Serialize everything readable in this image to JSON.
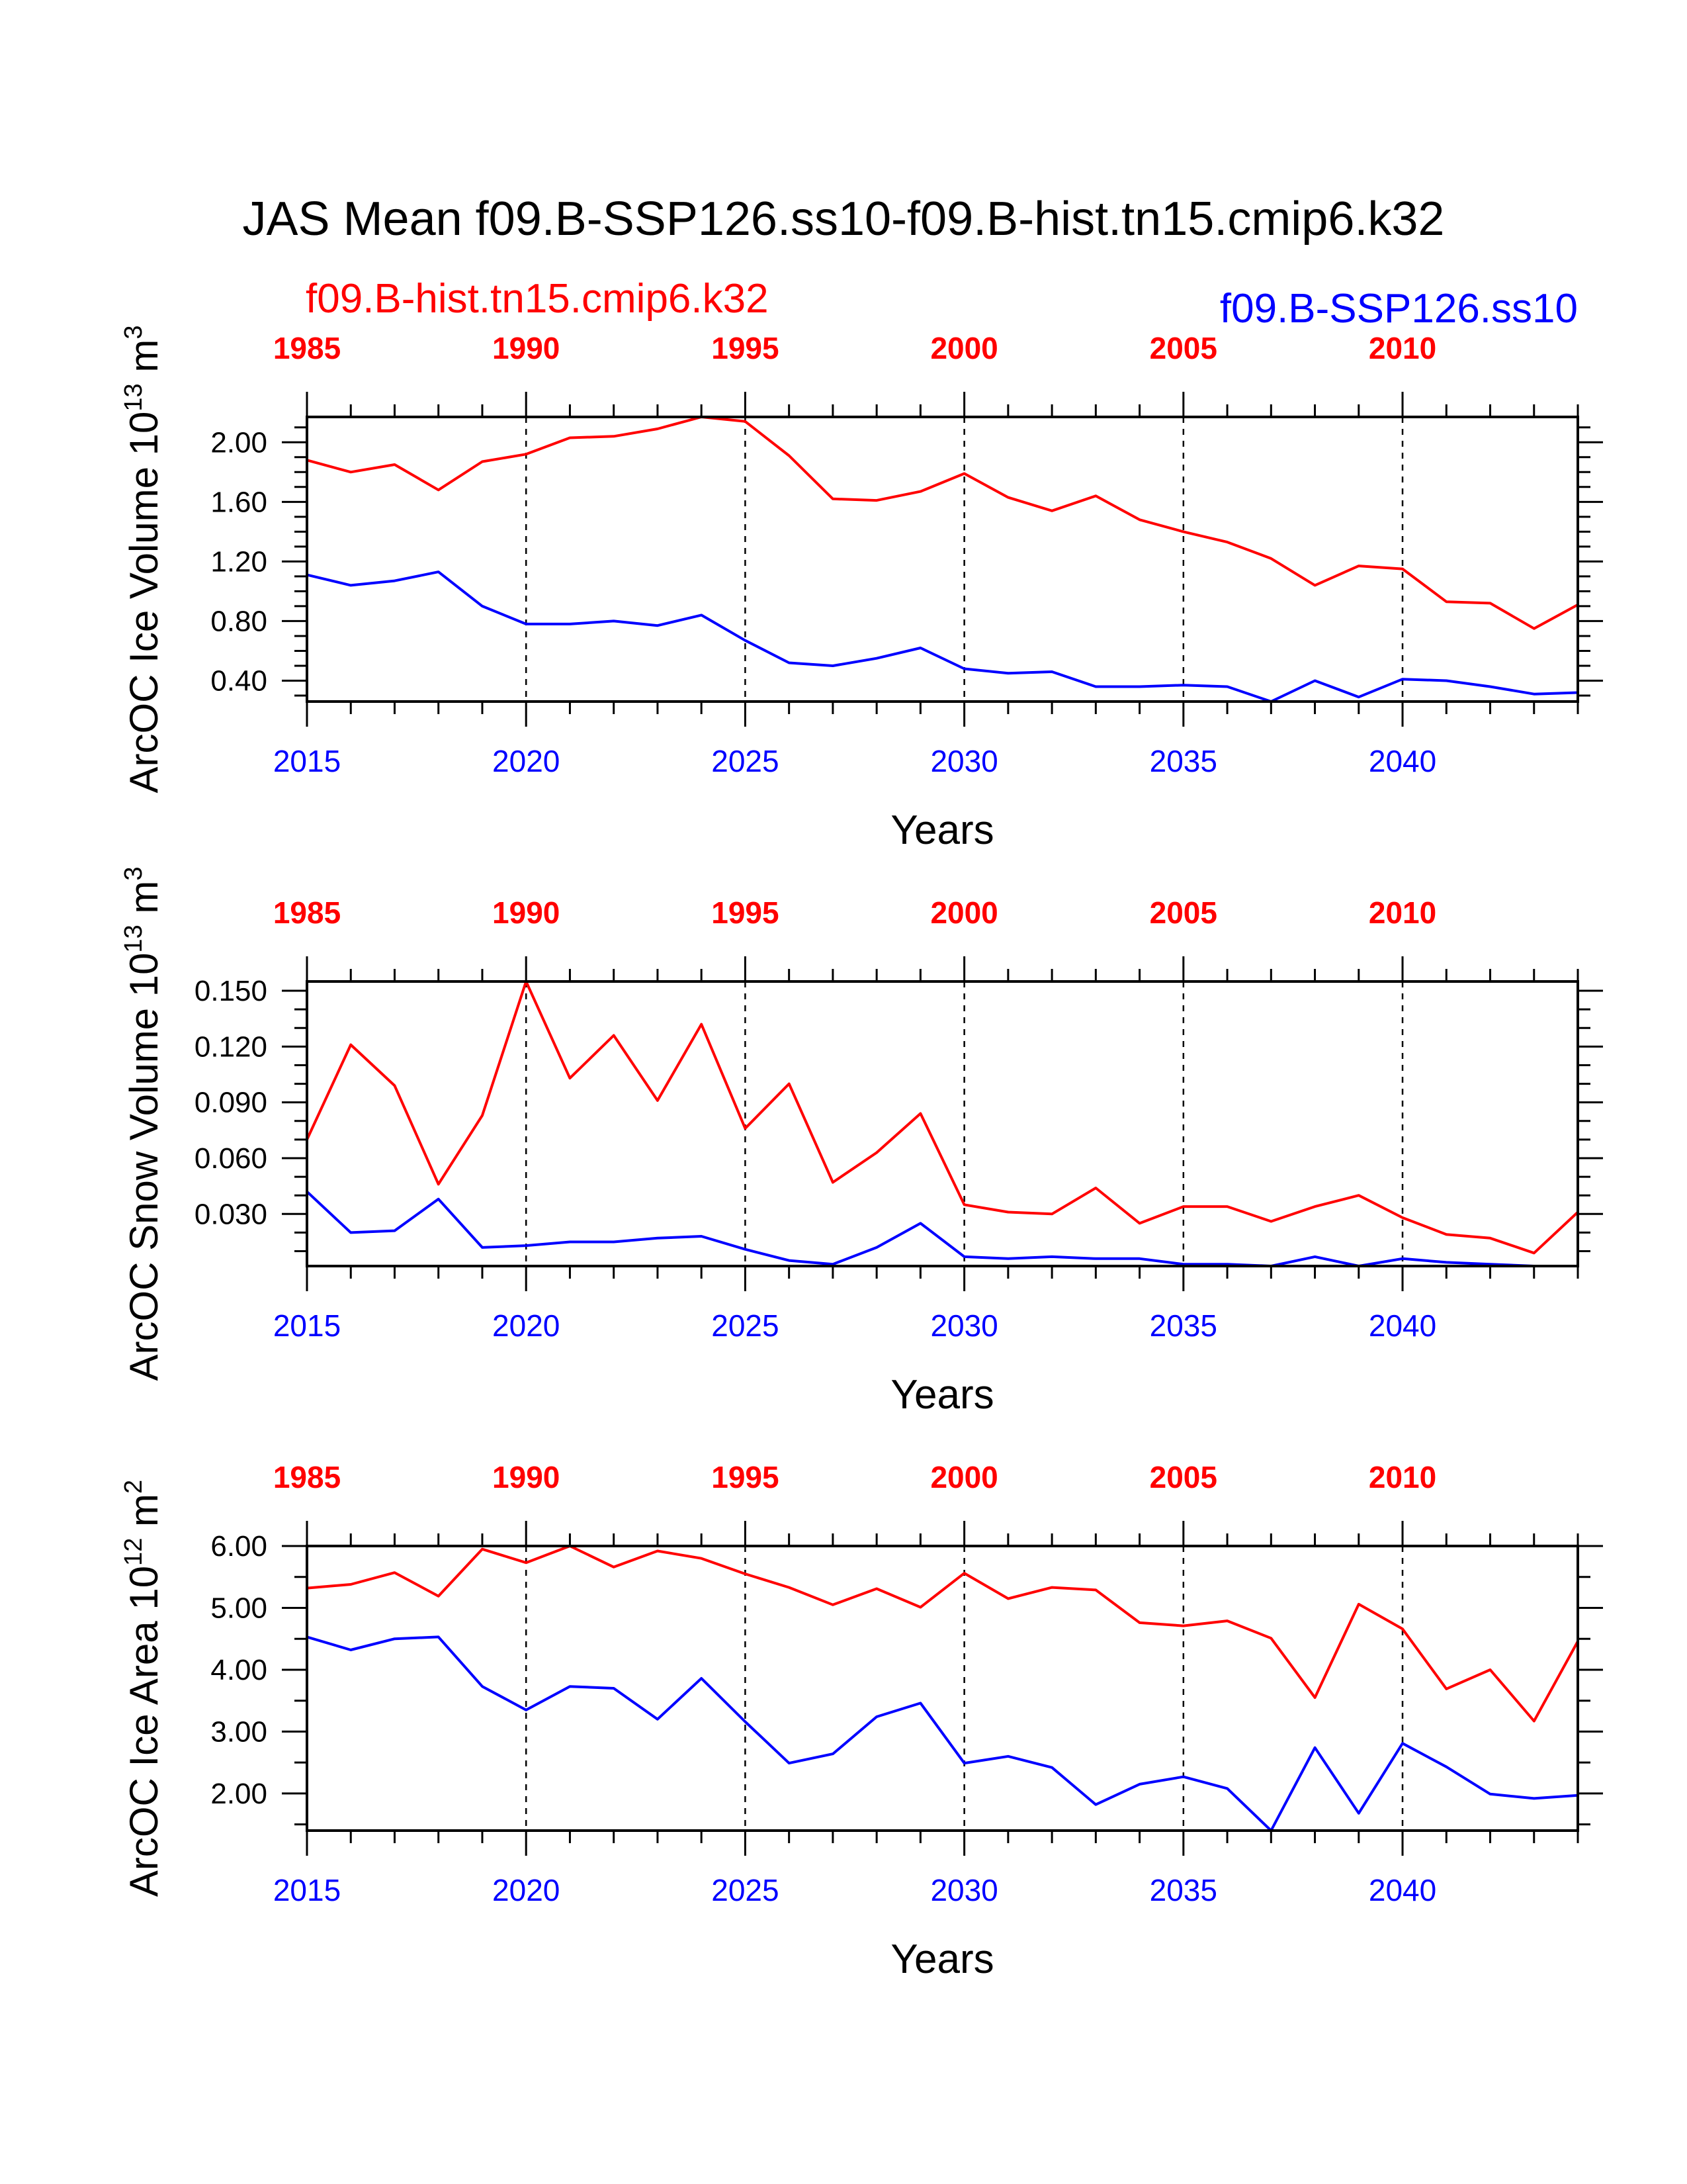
{
  "title": "JAS Mean f09.B-SSP126.ss10-f09.B-hist.tn15.cmip6.k32",
  "legend": {
    "hist_label": "f09.B-hist.tn15.cmip6.k32",
    "ssp_label": "f09.B-SSP126.ss10"
  },
  "colors": {
    "hist": "#ff0000",
    "ssp": "#0000ff",
    "axis": "#000000"
  },
  "chart_data": [
    {
      "type": "line",
      "ylabel": "ArcOC Ice Volume 10",
      "ylabel_exp": "13",
      "ylabel_unit": " m",
      "ylabel_unit_exp": "3",
      "xlabel": "Years",
      "ylim": [
        0.26,
        2.17
      ],
      "yticks": [
        0.4,
        0.8,
        1.2,
        1.6,
        2.0
      ],
      "ytick_labels": [
        "0.40",
        "0.80",
        "1.20",
        "1.60",
        "2.00"
      ],
      "yminor": [
        0.3,
        0.5,
        0.6,
        0.7,
        0.9,
        1.0,
        1.1,
        1.3,
        1.4,
        1.5,
        1.7,
        1.8,
        1.9,
        2.1
      ],
      "xlim": [
        2015,
        2044
      ],
      "x_bottom_ticks": [
        2015,
        2020,
        2025,
        2030,
        2035,
        2040
      ],
      "x_bottom_labels": [
        "2015",
        "2020",
        "2025",
        "2030",
        "2035",
        "2040"
      ],
      "x_top_labels": [
        "1985",
        "1990",
        "1995",
        "2000",
        "2005",
        "2010"
      ],
      "x": [
        2015,
        2016,
        2017,
        2018,
        2019,
        2020,
        2021,
        2022,
        2023,
        2024,
        2025,
        2026,
        2027,
        2028,
        2029,
        2030,
        2031,
        2032,
        2033,
        2034,
        2035,
        2036,
        2037,
        2038,
        2039,
        2040,
        2041,
        2042,
        2043,
        2044
      ],
      "series": [
        {
          "name": "f09.B-hist.tn15.cmip6.k32",
          "color": "#ff0000",
          "values": [
            1.88,
            1.8,
            1.85,
            1.68,
            1.87,
            1.92,
            2.03,
            2.04,
            2.09,
            2.17,
            2.14,
            1.91,
            1.62,
            1.61,
            1.67,
            1.79,
            1.63,
            1.54,
            1.64,
            1.48,
            1.4,
            1.33,
            1.22,
            1.04,
            1.17,
            1.15,
            0.93,
            0.92,
            0.75,
            0.91
          ]
        },
        {
          "name": "f09.B-SSP126.ss10",
          "color": "#0000ff",
          "values": [
            1.11,
            1.04,
            1.07,
            1.13,
            0.9,
            0.78,
            0.78,
            0.8,
            0.77,
            0.84,
            0.67,
            0.52,
            0.5,
            0.55,
            0.62,
            0.48,
            0.45,
            0.46,
            0.36,
            0.36,
            0.37,
            0.36,
            0.26,
            0.4,
            0.29,
            0.41,
            0.4,
            0.36,
            0.31,
            0.32
          ]
        }
      ]
    },
    {
      "type": "line",
      "ylabel": "ArcOC Snow Volume 10",
      "ylabel_exp": "13",
      "ylabel_unit": " m",
      "ylabel_unit_exp": "3",
      "xlabel": "Years",
      "ylim": [
        0.002,
        0.155
      ],
      "yticks": [
        0.03,
        0.06,
        0.09,
        0.12,
        0.15
      ],
      "ytick_labels": [
        "0.030",
        "0.060",
        "0.090",
        "0.120",
        "0.150"
      ],
      "yminor": [
        0.01,
        0.02,
        0.04,
        0.05,
        0.07,
        0.08,
        0.1,
        0.11,
        0.13,
        0.14
      ],
      "xlim": [
        2015,
        2044
      ],
      "x_bottom_ticks": [
        2015,
        2020,
        2025,
        2030,
        2035,
        2040
      ],
      "x_bottom_labels": [
        "2015",
        "2020",
        "2025",
        "2030",
        "2035",
        "2040"
      ],
      "x_top_labels": [
        "1985",
        "1990",
        "1995",
        "2000",
        "2005",
        "2010"
      ],
      "x": [
        2015,
        2016,
        2017,
        2018,
        2019,
        2020,
        2021,
        2022,
        2023,
        2024,
        2025,
        2026,
        2027,
        2028,
        2029,
        2030,
        2031,
        2032,
        2033,
        2034,
        2035,
        2036,
        2037,
        2038,
        2039,
        2040,
        2041,
        2042,
        2043,
        2044
      ],
      "series": [
        {
          "name": "f09.B-hist.tn15.cmip6.k32",
          "color": "#ff0000",
          "values": [
            0.07,
            0.121,
            0.099,
            0.046,
            0.083,
            0.155,
            0.103,
            0.126,
            0.091,
            0.132,
            0.076,
            0.1,
            0.047,
            0.063,
            0.084,
            0.035,
            0.031,
            0.03,
            0.044,
            0.025,
            0.034,
            0.034,
            0.026,
            0.034,
            0.04,
            0.028,
            0.019,
            0.017,
            0.009,
            0.031
          ]
        },
        {
          "name": "f09.B-SSP126.ss10",
          "color": "#0000ff",
          "values": [
            0.042,
            0.02,
            0.021,
            0.038,
            0.012,
            0.013,
            0.015,
            0.015,
            0.017,
            0.018,
            0.011,
            0.005,
            0.003,
            0.012,
            0.025,
            0.007,
            0.006,
            0.007,
            0.006,
            0.006,
            0.003,
            0.003,
            0.002,
            0.007,
            0.002,
            0.006,
            0.004,
            0.003,
            0.002,
            0.002
          ]
        }
      ]
    },
    {
      "type": "line",
      "ylabel": "ArcOC Ice Area 10",
      "ylabel_exp": "12",
      "ylabel_unit": " m",
      "ylabel_unit_exp": "2",
      "xlabel": "Years",
      "ylim": [
        1.4,
        6.0
      ],
      "yticks": [
        2.0,
        3.0,
        4.0,
        5.0,
        6.0
      ],
      "ytick_labels": [
        "2.00",
        "3.00",
        "4.00",
        "5.00",
        "6.00"
      ],
      "yminor": [
        1.5,
        2.5,
        3.5,
        4.5,
        5.5
      ],
      "xlim": [
        2015,
        2044
      ],
      "x_bottom_ticks": [
        2015,
        2020,
        2025,
        2030,
        2035,
        2040
      ],
      "x_bottom_labels": [
        "2015",
        "2020",
        "2025",
        "2030",
        "2035",
        "2040"
      ],
      "x_top_labels": [
        "1985",
        "1990",
        "1995",
        "2000",
        "2005",
        "2010"
      ],
      "x": [
        2015,
        2016,
        2017,
        2018,
        2019,
        2020,
        2021,
        2022,
        2023,
        2024,
        2025,
        2026,
        2027,
        2028,
        2029,
        2030,
        2031,
        2032,
        2033,
        2034,
        2035,
        2036,
        2037,
        2038,
        2039,
        2040,
        2041,
        2042,
        2043,
        2044
      ],
      "series": [
        {
          "name": "f09.B-hist.tn15.cmip6.k32",
          "color": "#ff0000",
          "values": [
            5.32,
            5.38,
            5.57,
            5.19,
            5.95,
            5.73,
            6.0,
            5.66,
            5.92,
            5.8,
            5.55,
            5.33,
            5.05,
            5.31,
            5.01,
            5.56,
            5.15,
            5.33,
            5.29,
            4.76,
            4.71,
            4.79,
            4.51,
            3.55,
            5.06,
            4.66,
            3.69,
            4.0,
            3.17,
            4.46
          ]
        },
        {
          "name": "f09.B-SSP126.ss10",
          "color": "#0000ff",
          "values": [
            4.53,
            4.32,
            4.5,
            4.53,
            3.73,
            3.35,
            3.73,
            3.7,
            3.2,
            3.86,
            3.16,
            2.49,
            2.64,
            3.24,
            3.46,
            2.49,
            2.6,
            2.42,
            1.82,
            2.15,
            2.27,
            2.08,
            1.4,
            2.74,
            1.68,
            2.81,
            2.43,
            1.99,
            1.92,
            1.97
          ]
        }
      ]
    }
  ]
}
